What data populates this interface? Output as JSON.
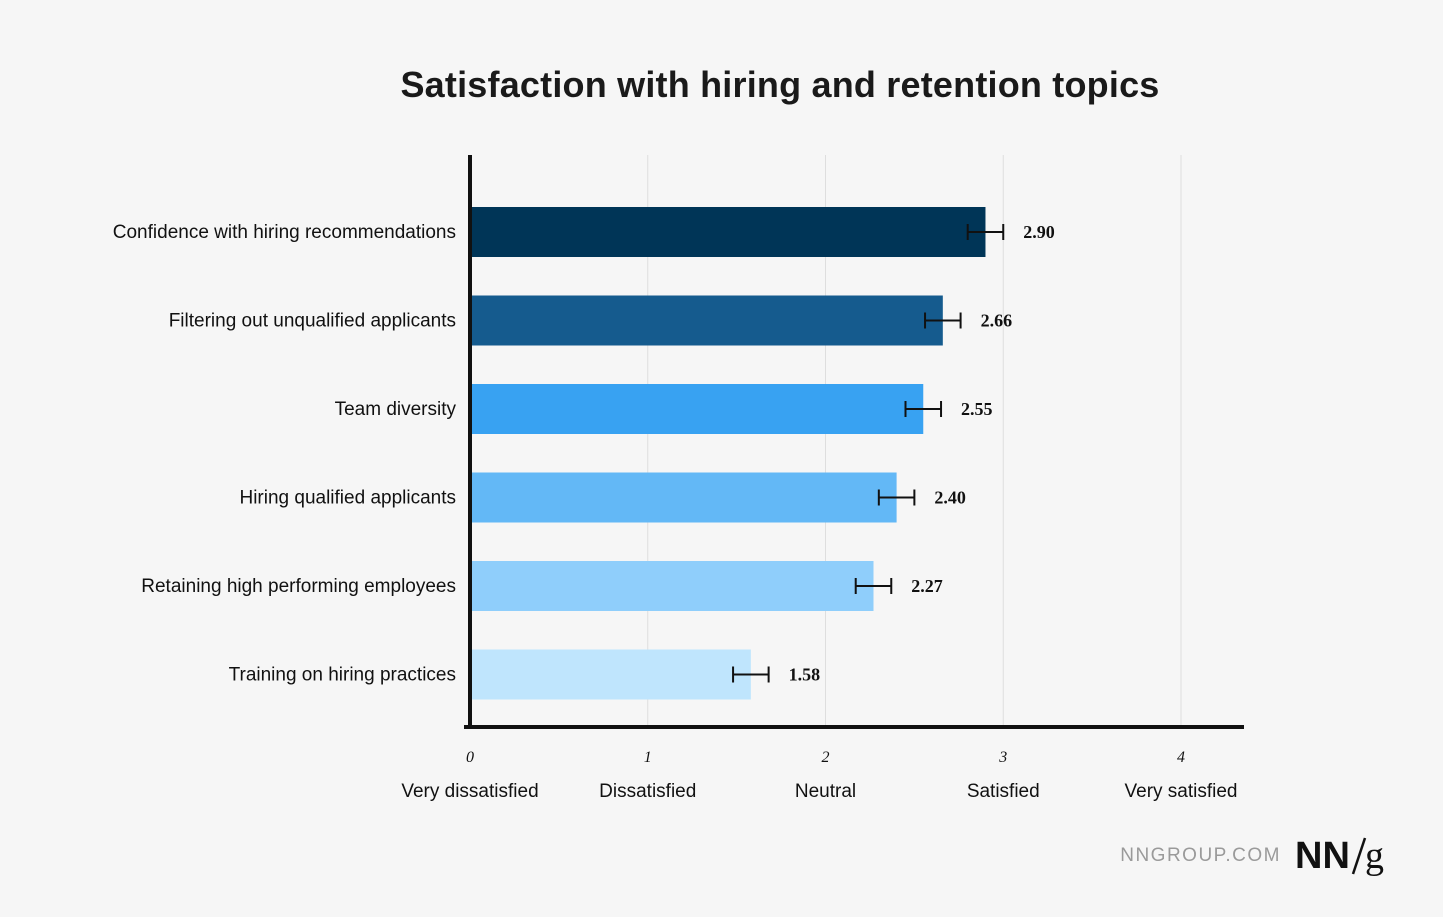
{
  "chart_data": {
    "type": "bar",
    "orientation": "horizontal",
    "title": "Satisfaction with hiring and retention topics",
    "categories": [
      "Confidence with hiring recommendations",
      "Filtering out unqualified applicants",
      "Team diversity",
      "Hiring qualified applicants",
      "Retaining high performing employees",
      "Training on hiring practices"
    ],
    "values": [
      2.9,
      2.66,
      2.55,
      2.4,
      2.27,
      1.58
    ],
    "value_labels": [
      "2.90",
      "2.66",
      "2.55",
      "2.40",
      "2.27",
      "1.58"
    ],
    "error_bars": [
      0.1,
      0.1,
      0.1,
      0.1,
      0.1,
      0.1
    ],
    "bar_colors": [
      "#003557",
      "#155b8e",
      "#38a2f2",
      "#63b8f6",
      "#8fcefb",
      "#bfe5fd"
    ],
    "xlim": [
      0,
      4
    ],
    "xticks": [
      "0",
      "1",
      "2",
      "3",
      "4"
    ],
    "scale_labels": [
      "Very dissatisfied",
      "Dissatisfied",
      "Neutral",
      "Satisfied",
      "Very satisfied"
    ],
    "grid": true,
    "legend": "none"
  },
  "brand": {
    "site": "NNGROUP.COM",
    "logo_text": "NN/g"
  }
}
